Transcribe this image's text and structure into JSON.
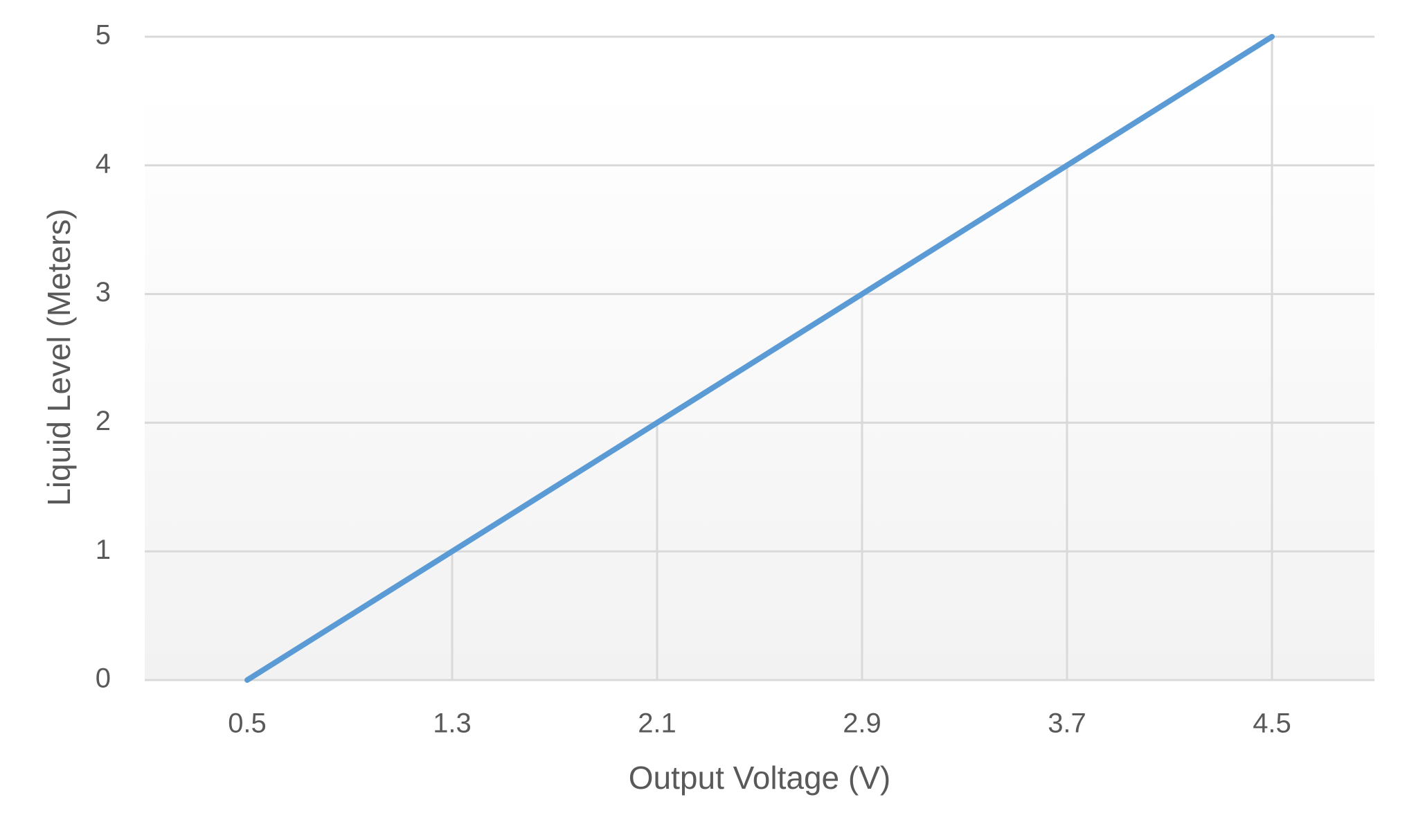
{
  "chart_data": {
    "type": "line",
    "x_label": "Output Voltage (V)",
    "y_label": "Liquid Level (Meters)",
    "categories": [
      "0.5",
      "1.3",
      "2.1",
      "2.9",
      "3.7",
      "4.5"
    ],
    "values": [
      0,
      1,
      2,
      3,
      4,
      5
    ],
    "color": "#5b9bd5",
    "ylim": [
      0,
      5
    ],
    "yticks": [
      0,
      1,
      2,
      3,
      4,
      5
    ],
    "grid": true,
    "drop_lines": true
  }
}
